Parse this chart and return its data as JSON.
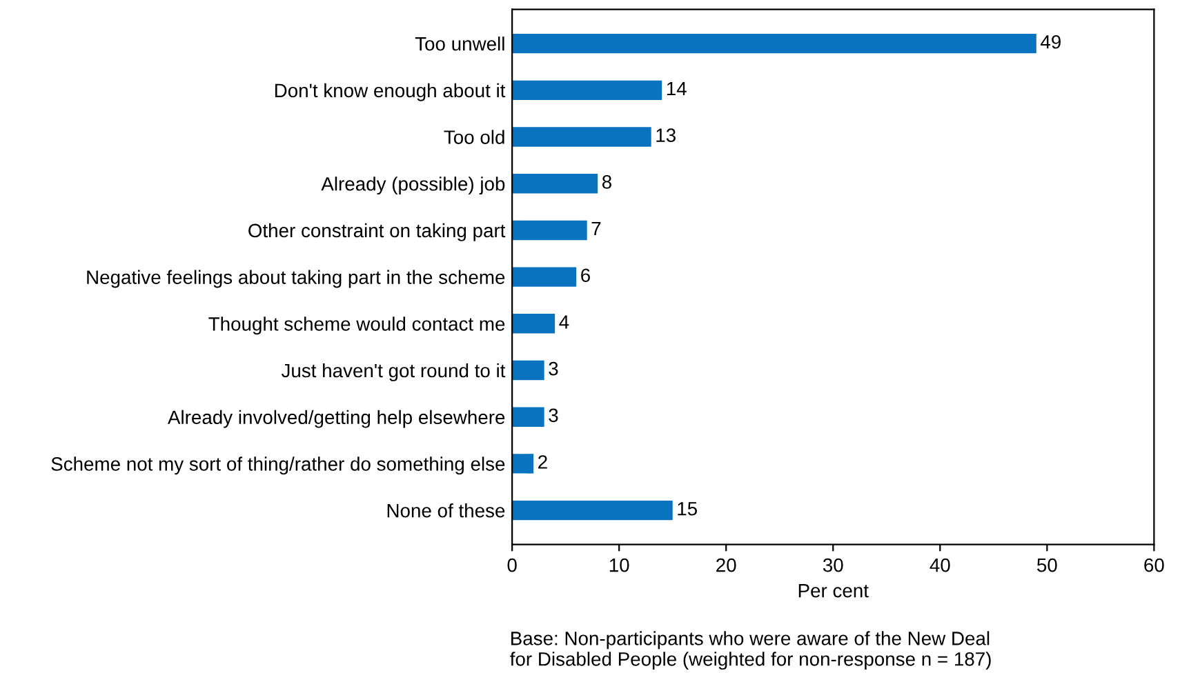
{
  "chart_data": {
    "type": "bar",
    "orientation": "horizontal",
    "xlabel": "Per cent",
    "categories": [
      "Too unwell",
      "Don't know enough about it",
      "Too old",
      "Already (possible) job",
      "Other constraint on taking part",
      "Negative feelings about taking part in the scheme",
      "Thought scheme would contact me",
      "Just haven't got round to it",
      "Already involved/getting help elsewhere",
      "Scheme not my sort of thing/rather do something else",
      "None of these"
    ],
    "values": [
      49,
      14,
      13,
      8,
      7,
      6,
      4,
      3,
      3,
      2,
      15
    ],
    "color": "#0a73c0",
    "data_labels": true,
    "xlim": [
      0,
      60
    ],
    "xticks": [
      0,
      10,
      20,
      30,
      40,
      50,
      60
    ],
    "grid": false,
    "annotations": [
      "Base: Non-participants who were aware of the New Deal\nfor Disabled People (weighted for non-response n = 187)"
    ]
  }
}
